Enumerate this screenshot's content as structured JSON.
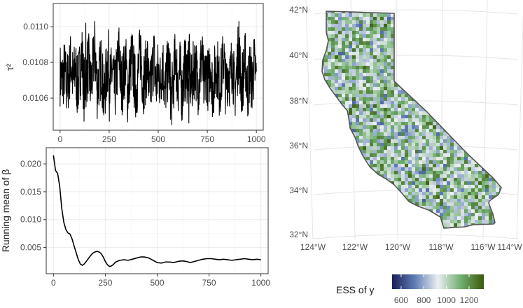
{
  "chart_data": [
    {
      "type": "line",
      "title": "",
      "xlabel": "",
      "ylabel": "τ²",
      "xlim": [
        -35,
        1035
      ],
      "ylim": [
        0.01042,
        0.01113
      ],
      "x_ticks": [
        0,
        250,
        500,
        750,
        1000
      ],
      "x_tick_labels": [
        "0",
        "250",
        "500",
        "750",
        "1000"
      ],
      "y_ticks": [
        0.0106,
        0.0108,
        0.011
      ],
      "y_tick_labels": [
        "0.0106",
        "0.0108",
        "0.0110"
      ],
      "grid": true,
      "series": [
        {
          "x_range": [
            0,
            1000
          ],
          "values": [
            0.01075,
            0.01068,
            0.0108,
            0.01063,
            0.01072,
            0.0109,
            0.01065,
            0.01084,
            0.0106,
            0.01078,
            0.01096,
            0.01058,
            0.01073,
            0.01088,
            0.01062,
            0.01079,
            0.01102,
            0.01061,
            0.01074,
            0.01086,
            0.0105,
            0.0107,
            0.01092,
            0.01066,
            0.01081,
            0.01056,
            0.01076,
            0.01098,
            0.01063,
            0.01071,
            0.01089,
            0.01055,
            0.01077,
            0.01093,
            0.01069,
            0.01059,
            0.01082,
            0.011,
            0.01064,
            0.01074,
            0.01087,
            0.01052,
            0.01072,
            0.01095,
            0.01061,
            0.0108,
            0.01066,
            0.01091,
            0.01057,
            0.01075,
            0.01085,
            0.01048,
            0.01069,
            0.01097,
            0.01063,
            0.01079,
            0.01054,
            0.01083,
            0.01073,
            0.01094,
            0.0106,
            0.01076,
            0.01088,
            0.01065,
            0.01071,
            0.01099,
            0.01058,
            0.01081,
            0.01067,
            0.0109,
            0.01056,
            0.01077,
            0.01086,
            0.01062,
            0.01073,
            0.01096,
            0.01059,
            0.01082,
            0.0107,
            0.01092,
            0.01055,
            0.01078,
            0.01104,
            0.01063,
            0.01074,
            0.01089,
            0.01057,
            0.0108,
            0.01066,
            0.01085,
            0.01072
          ]
        }
      ]
    },
    {
      "type": "line",
      "title": "",
      "xlabel": "",
      "ylabel": "Running mean of β",
      "xlim": [
        -35,
        1035
      ],
      "ylim": [
        0.0003,
        0.0229
      ],
      "x_ticks": [
        0,
        250,
        500,
        750,
        1000
      ],
      "x_tick_labels": [
        "0",
        "250",
        "500",
        "750",
        "1000"
      ],
      "y_ticks": [
        0.005,
        0.01,
        0.015,
        0.02
      ],
      "y_tick_labels": [
        "0.005",
        "0.010",
        "0.015",
        "0.020"
      ],
      "grid": true,
      "series": [
        {
          "x": [
            0,
            10,
            20,
            30,
            40,
            50,
            60,
            70,
            80,
            90,
            100,
            110,
            120,
            130,
            140,
            150,
            160,
            170,
            180,
            190,
            200,
            210,
            220,
            230,
            240,
            250,
            260,
            270,
            280,
            290,
            300,
            320,
            340,
            360,
            380,
            400,
            420,
            440,
            460,
            480,
            500,
            520,
            540,
            560,
            580,
            600,
            620,
            640,
            660,
            680,
            700,
            720,
            740,
            760,
            780,
            800,
            820,
            840,
            860,
            880,
            900,
            920,
            940,
            960,
            980,
            1000
          ],
          "y": [
            0.0215,
            0.0188,
            0.0183,
            0.016,
            0.012,
            0.0095,
            0.0082,
            0.0076,
            0.0074,
            0.0065,
            0.0052,
            0.004,
            0.0028,
            0.002,
            0.0018,
            0.0021,
            0.0026,
            0.0031,
            0.0036,
            0.004,
            0.0042,
            0.0043,
            0.0042,
            0.0039,
            0.0033,
            0.0025,
            0.0019,
            0.0016,
            0.0017,
            0.002,
            0.0024,
            0.0027,
            0.0028,
            0.0027,
            0.0029,
            0.0031,
            0.0033,
            0.0033,
            0.0031,
            0.0027,
            0.0023,
            0.0022,
            0.0024,
            0.0024,
            0.0023,
            0.0025,
            0.0026,
            0.0025,
            0.0023,
            0.0025,
            0.0027,
            0.0029,
            0.003,
            0.003,
            0.0029,
            0.0028,
            0.0029,
            0.0028,
            0.0027,
            0.0028,
            0.0029,
            0.003,
            0.0029,
            0.0028,
            0.0029,
            0.0028
          ]
        }
      ]
    },
    {
      "type": "heatmap",
      "title": "",
      "region": "California",
      "legend_title": "ESS of y",
      "legend_position": "bottom",
      "legend_ticks": [
        600,
        800,
        1000,
        1200
      ],
      "legend_tick_labels": [
        "600",
        "800",
        "1000",
        "1200"
      ],
      "value_range": [
        520,
        1330
      ],
      "colors": {
        "low": "#1b1f5a",
        "mid_low": "#5f7fb5",
        "mid": "#ebeef2",
        "mid_high": "#6fae6f",
        "high": "#3c5a0a"
      },
      "lat_ticks": [
        "32°N",
        "34°N",
        "36°N",
        "38°N",
        "40°N",
        "42°N"
      ],
      "lon_ticks": [
        "124°W",
        "122°W",
        "120°W",
        "118°W",
        "116°W",
        "114°W"
      ],
      "grid": true
    }
  ]
}
